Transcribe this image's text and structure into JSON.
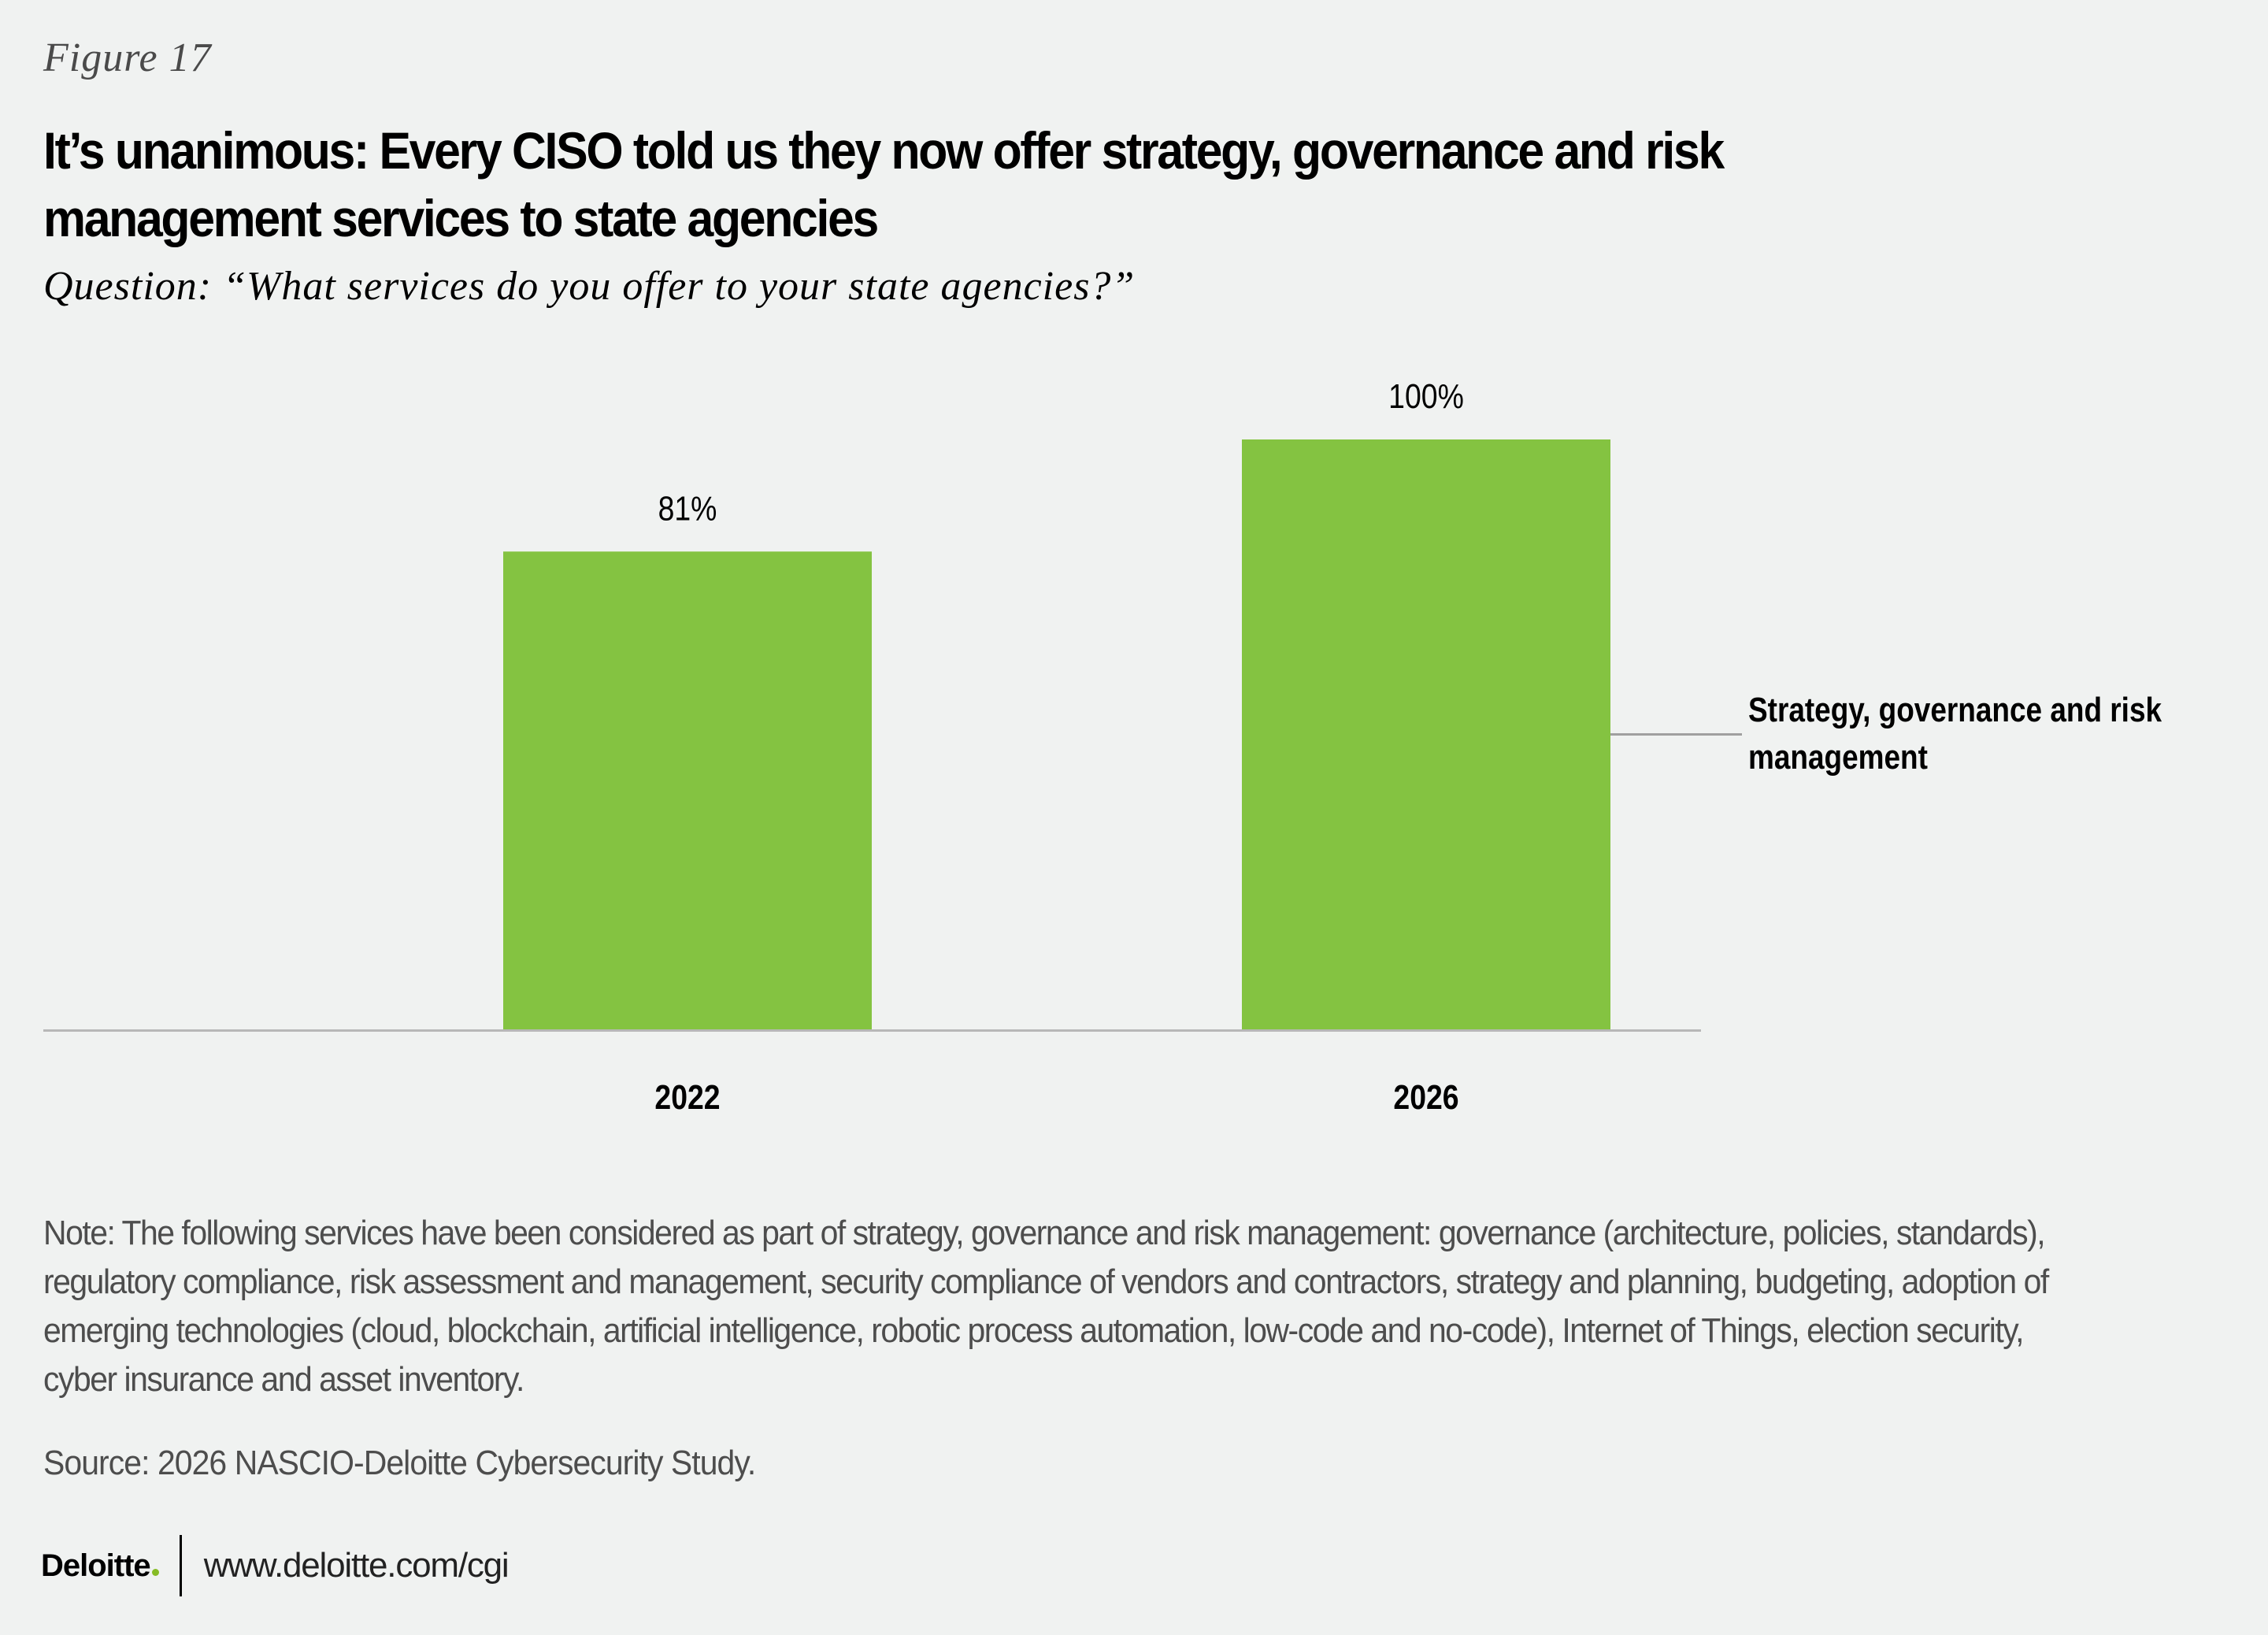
{
  "figure_label": "Figure 17",
  "title_line1": "It’s unanimous: Every CISO told us they now offer strategy, governance and risk",
  "title_line2": "management services to state agencies",
  "question": "Question: “What services do you offer to your state agencies?”",
  "chart_data": {
    "type": "bar",
    "title": "It’s unanimous: Every CISO told us they now offer strategy, governance and risk management services to state agencies",
    "subtitle": "Question: “What services do you offer to your state agencies?”",
    "categories": [
      "2022",
      "2026"
    ],
    "series": [
      {
        "name": "Strategy, governance and risk management",
        "values": [
          81,
          100
        ],
        "labels": [
          "81%",
          "100%"
        ],
        "color": "#84c341"
      }
    ],
    "xlabel": "",
    "ylabel": "",
    "ylim": [
      0,
      100
    ],
    "unit": "%",
    "grid": false,
    "legend": {
      "placement": "right",
      "entries": [
        "Strategy, governance and risk",
        "management"
      ]
    },
    "axis_color": "#b8b8b8"
  },
  "note": "Note: The following services have been considered as part of strategy, governance and risk management: governance (architecture, policies, standards), regulatory compliance, risk assessment and management, security compliance of vendors and contractors, strategy and planning, budgeting, adoption of emerging technologies (cloud, blockchain, artificial intelligence, robotic process automation, low-code and no-code), Internet of Things, election security, cyber insurance and asset inventory.",
  "source": "Source: 2026 NASCIO-Deloitte Cybersecurity Study.",
  "footer": {
    "logo_text": "Deloitte",
    "logo_dot_color": "#86bc25",
    "url": "www.deloitte.com/cgi"
  }
}
